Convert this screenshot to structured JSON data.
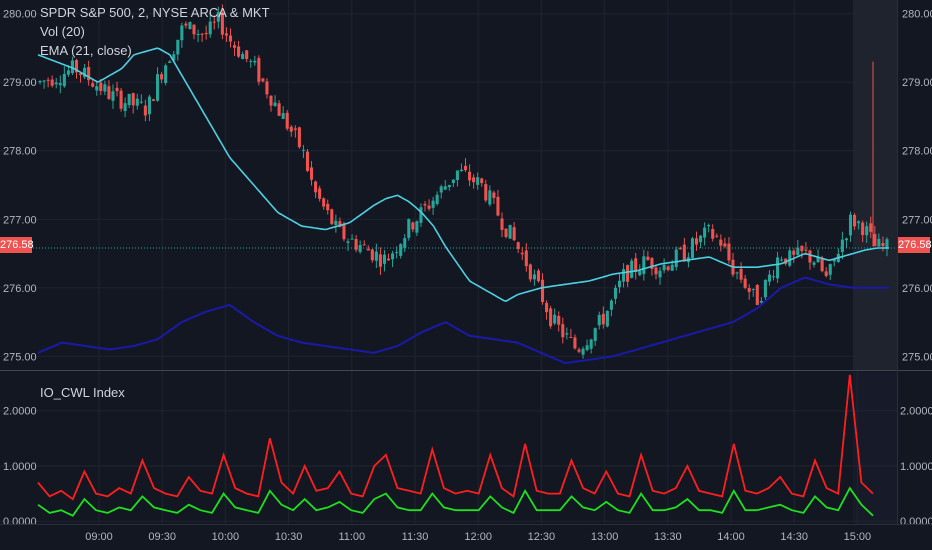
{
  "symbol_title": "SPDR S&P 500, 2, NYSE ARCA & MKT",
  "indicator_labels": [
    "Vol (20)",
    "EMA (21, close)"
  ],
  "last_price_label": "276.58",
  "lower_title": "IO_CWL Index",
  "colors": {
    "background": "#131722",
    "up_candle": "#26a69a",
    "down_candle": "#ef5350",
    "ema": "#4dd0e1",
    "vol_line": "#1a1aa8",
    "io_red": "#ff1f1f",
    "io_green": "#1fe01f",
    "grid": "#1f2430"
  },
  "chart_data": [
    {
      "type": "candlestick",
      "title": "SPDR S&P 500, 2, NYSE ARCA & MKT",
      "x_tick_labels": [
        "09:00",
        "09:30",
        "10:00",
        "10:30",
        "11:00",
        "11:30",
        "12:00",
        "12:30",
        "13:00",
        "13:30",
        "14:00",
        "14:30",
        "15:00"
      ],
      "y_tick_labels": [
        "275.00",
        "276.00",
        "277.00",
        "278.00",
        "279.00",
        "280.00"
      ],
      "ylim": [
        274.8,
        280.2
      ],
      "last_price": 276.58,
      "close_path": [
        [
          0,
          279.0
        ],
        [
          3,
          279.2
        ],
        [
          6,
          278.8
        ],
        [
          9,
          278.6
        ],
        [
          10,
          279.1
        ],
        [
          12,
          279.8
        ],
        [
          14,
          279.7
        ],
        [
          15,
          279.9
        ],
        [
          16,
          279.6
        ],
        [
          18,
          279.2
        ],
        [
          20,
          278.6
        ],
        [
          22,
          278.0
        ],
        [
          23,
          277.4
        ],
        [
          24,
          277.1
        ],
        [
          25,
          276.8
        ],
        [
          27,
          276.6
        ],
        [
          29,
          276.4
        ],
        [
          31,
          276.9
        ],
        [
          33,
          277.3
        ],
        [
          35,
          277.7
        ],
        [
          37,
          277.5
        ],
        [
          38,
          277.2
        ],
        [
          39,
          276.9
        ],
        [
          40,
          276.6
        ],
        [
          41,
          276.3
        ],
        [
          42,
          275.9
        ],
        [
          43,
          275.5
        ],
        [
          44,
          275.3
        ],
        [
          45,
          275.1
        ],
        [
          46,
          275.3
        ],
        [
          47,
          275.5
        ],
        [
          48,
          275.8
        ],
        [
          49,
          276.2
        ],
        [
          51,
          276.4
        ],
        [
          52,
          276.3
        ],
        [
          54,
          276.5
        ],
        [
          56,
          276.8
        ],
        [
          57,
          276.7
        ],
        [
          58,
          276.3
        ],
        [
          59,
          276.1
        ],
        [
          60,
          275.8
        ],
        [
          61,
          276.1
        ],
        [
          62,
          276.5
        ],
        [
          63,
          276.4
        ],
        [
          64,
          276.5
        ],
        [
          65,
          276.4
        ],
        [
          66,
          276.1
        ],
        [
          67,
          276.6
        ],
        [
          68,
          277.0
        ],
        [
          69,
          276.9
        ],
        [
          70,
          276.6
        ],
        [
          71,
          276.58
        ]
      ],
      "series": [
        {
          "name": "EMA (21, close)",
          "values": [
            [
              0,
              279.4
            ],
            [
              3,
              279.2
            ],
            [
              5,
              279.0
            ],
            [
              7,
              279.2
            ],
            [
              8,
              279.4
            ],
            [
              10,
              279.5
            ],
            [
              11,
              279.4
            ],
            [
              12,
              279.1
            ],
            [
              13,
              278.8
            ],
            [
              14,
              278.5
            ],
            [
              15,
              278.2
            ],
            [
              16,
              277.9
            ],
            [
              18,
              277.5
            ],
            [
              20,
              277.1
            ],
            [
              22,
              276.9
            ],
            [
              24,
              276.85
            ],
            [
              26,
              276.95
            ],
            [
              28,
              277.2
            ],
            [
              29,
              277.3
            ],
            [
              30,
              277.35
            ],
            [
              31,
              277.25
            ],
            [
              32,
              277.1
            ],
            [
              33,
              276.9
            ],
            [
              34,
              276.6
            ],
            [
              35,
              276.35
            ],
            [
              36,
              276.1
            ],
            [
              38,
              275.9
            ],
            [
              39,
              275.8
            ],
            [
              40,
              275.9
            ],
            [
              42,
              276.0
            ],
            [
              44,
              276.05
            ],
            [
              46,
              276.1
            ],
            [
              48,
              276.2
            ],
            [
              50,
              276.25
            ],
            [
              52,
              276.35
            ],
            [
              54,
              276.4
            ],
            [
              56,
              276.45
            ],
            [
              58,
              276.3
            ],
            [
              60,
              276.3
            ],
            [
              62,
              276.35
            ],
            [
              64,
              276.5
            ],
            [
              66,
              276.4
            ],
            [
              68,
              276.5
            ],
            [
              69,
              276.55
            ],
            [
              70,
              276.58
            ]
          ]
        },
        {
          "name": "Vol (20)",
          "values": [
            [
              0,
              275.05
            ],
            [
              2,
              275.2
            ],
            [
              4,
              275.15
            ],
            [
              6,
              275.1
            ],
            [
              8,
              275.15
            ],
            [
              10,
              275.25
            ],
            [
              12,
              275.5
            ],
            [
              14,
              275.65
            ],
            [
              16,
              275.75
            ],
            [
              18,
              275.5
            ],
            [
              20,
              275.3
            ],
            [
              22,
              275.2
            ],
            [
              24,
              275.15
            ],
            [
              26,
              275.1
            ],
            [
              28,
              275.05
            ],
            [
              30,
              275.15
            ],
            [
              32,
              275.35
            ],
            [
              34,
              275.5
            ],
            [
              36,
              275.3
            ],
            [
              38,
              275.25
            ],
            [
              40,
              275.2
            ],
            [
              42,
              275.05
            ],
            [
              44,
              274.9
            ],
            [
              46,
              274.95
            ],
            [
              48,
              275.0
            ],
            [
              50,
              275.1
            ],
            [
              52,
              275.2
            ],
            [
              54,
              275.3
            ],
            [
              56,
              275.4
            ],
            [
              58,
              275.5
            ],
            [
              60,
              275.7
            ],
            [
              62,
              276.0
            ],
            [
              64,
              276.15
            ],
            [
              66,
              276.05
            ],
            [
              68,
              276.0
            ],
            [
              70,
              276.0
            ]
          ]
        }
      ]
    },
    {
      "type": "line",
      "title": "IO_CWL Index",
      "x_tick_labels": [
        "09:00",
        "09:30",
        "10:00",
        "10:30",
        "11:00",
        "11:30",
        "12:00",
        "12:30",
        "13:00",
        "13:30",
        "14:00",
        "14:30",
        "15:00"
      ],
      "y_tick_labels": [
        "0.0000",
        "1.0000",
        "2.0000"
      ],
      "ylim": [
        -0.05,
        2.7
      ],
      "series": [
        {
          "name": "red",
          "values": [
            0.7,
            0.45,
            0.55,
            0.4,
            0.9,
            0.5,
            0.45,
            0.6,
            0.5,
            1.1,
            0.6,
            0.5,
            0.45,
            0.8,
            0.55,
            0.5,
            1.2,
            0.6,
            0.5,
            0.45,
            1.5,
            0.7,
            0.5,
            1.0,
            0.55,
            0.6,
            0.9,
            0.5,
            0.45,
            1.0,
            1.2,
            0.6,
            0.55,
            0.5,
            1.3,
            0.6,
            0.5,
            0.55,
            0.5,
            1.2,
            0.6,
            0.45,
            1.4,
            0.55,
            0.5,
            0.5,
            1.1,
            0.6,
            0.5,
            0.9,
            0.5,
            0.45,
            1.2,
            0.55,
            0.5,
            0.6,
            1.0,
            0.55,
            0.5,
            0.45,
            1.4,
            0.55,
            0.5,
            0.6,
            0.8,
            0.5,
            0.45,
            1.1,
            0.6,
            0.5,
            2.65,
            0.7,
            0.5
          ]
        },
        {
          "name": "green",
          "values": [
            0.3,
            0.15,
            0.2,
            0.1,
            0.4,
            0.2,
            0.15,
            0.25,
            0.2,
            0.45,
            0.25,
            0.2,
            0.15,
            0.3,
            0.2,
            0.15,
            0.5,
            0.25,
            0.2,
            0.15,
            0.55,
            0.3,
            0.2,
            0.4,
            0.2,
            0.25,
            0.35,
            0.2,
            0.15,
            0.4,
            0.5,
            0.25,
            0.2,
            0.2,
            0.5,
            0.25,
            0.2,
            0.2,
            0.2,
            0.45,
            0.25,
            0.15,
            0.55,
            0.2,
            0.2,
            0.2,
            0.45,
            0.25,
            0.2,
            0.35,
            0.2,
            0.15,
            0.5,
            0.2,
            0.2,
            0.25,
            0.4,
            0.2,
            0.2,
            0.15,
            0.55,
            0.2,
            0.2,
            0.25,
            0.3,
            0.2,
            0.15,
            0.45,
            0.25,
            0.2,
            0.6,
            0.3,
            0.1
          ]
        }
      ]
    }
  ]
}
